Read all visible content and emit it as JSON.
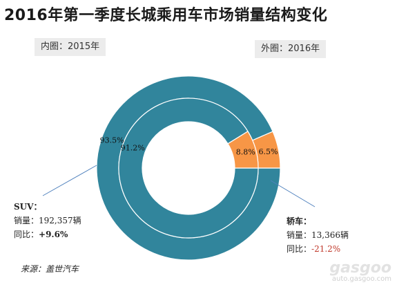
{
  "title": "2016年第一季度长城乘用车市场销量结构变化",
  "inner_ring_label": "内圈：2015年",
  "outer_ring_label": "外圈：2016年",
  "colors": {
    "suv": "#31859C",
    "sedan": "#F79646",
    "leader": "#4F81BD"
  },
  "chart_data": {
    "type": "pie",
    "categories": [
      "SUV",
      "轿车"
    ],
    "series": [
      {
        "ring": "outer",
        "values": [
          93.5,
          6.5
        ],
        "labels": [
          "93.5%",
          "6.5%"
        ]
      },
      {
        "ring": "inner",
        "values": [
          91.2,
          8.8
        ],
        "labels": [
          "91.2%",
          "8.8%"
        ]
      }
    ]
  },
  "suv": {
    "name": "SUV：",
    "sales_label": "销量：",
    "sales_value": "192,357辆",
    "yoy_label": "同比：",
    "yoy_value": "+9.6%"
  },
  "sedan": {
    "name": "轿车：",
    "sales_label": "销量：",
    "sales_value": "13,366辆",
    "yoy_label": "同比：",
    "yoy_value": "-21.2%"
  },
  "source": "来源：盖世汽车",
  "watermark": {
    "logo": "gasgoo",
    "url": "auto.gasgoo.com"
  }
}
